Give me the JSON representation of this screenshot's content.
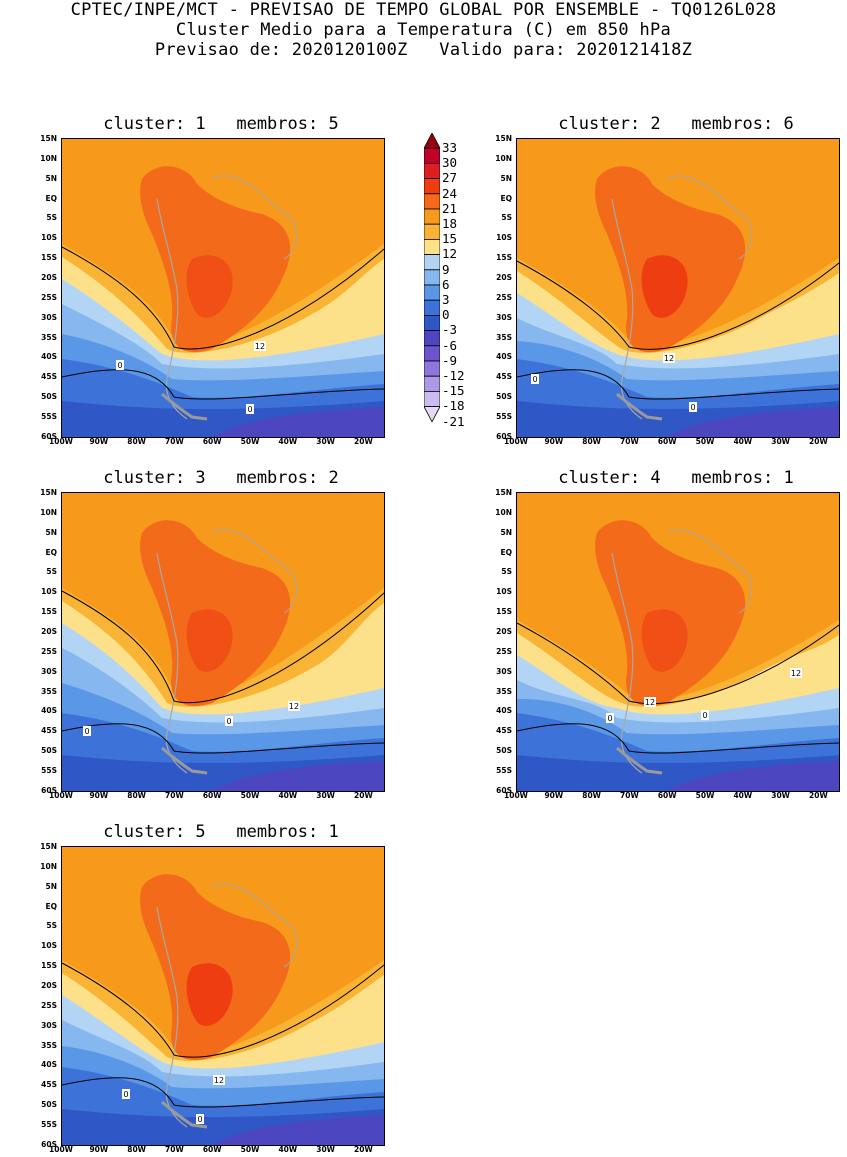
{
  "header": {
    "line1": "CPTEC/INPE/MCT - PREVISAO DE TEMPO GLOBAL POR ENSEMBLE - TQ0126L028",
    "line2": "Cluster Medio para a Temperatura (C) em 850 hPa",
    "line3": "Previsao de: 2020120100Z   Valido para: 2020121418Z"
  },
  "lat_labels": [
    "15N",
    "10N",
    "5N",
    "EQ",
    "5S",
    "10S",
    "15S",
    "20S",
    "25S",
    "30S",
    "35S",
    "40S",
    "45S",
    "50S",
    "55S",
    "60S"
  ],
  "lon_labels": [
    "100W",
    "90W",
    "80W",
    "70W",
    "60W",
    "50W",
    "40W",
    "30W",
    "20W"
  ],
  "colorbar": {
    "labels": [
      "33",
      "30",
      "27",
      "24",
      "21",
      "18",
      "15",
      "12",
      "9",
      "6",
      "3",
      "0",
      "-3",
      "-6",
      "-9",
      "-12",
      "-15",
      "-18",
      "-21"
    ],
    "colors": [
      "#9c0010",
      "#c2002a",
      "#dd1f1f",
      "#ef3d12",
      "#f36b1a",
      "#f79a1c",
      "#f9b435",
      "#fde08a",
      "#b3d5f5",
      "#86b8ef",
      "#5a97e6",
      "#3d73d9",
      "#2f58c6",
      "#4c47c0",
      "#6a55cc",
      "#8d77dc",
      "#ac99e6",
      "#cbbcf0",
      "#e4dbf7"
    ]
  },
  "panels": [
    {
      "title": "cluster: 1   membros: 5",
      "contour_labels": [
        "12",
        "0",
        "0"
      ]
    },
    {
      "title": "cluster: 2   membros: 6",
      "contour_labels": [
        "12",
        "0",
        "0"
      ]
    },
    {
      "title": "cluster: 3   membros: 2",
      "contour_labels": [
        "12",
        "0",
        "0"
      ]
    },
    {
      "title": "cluster: 4   membros: 1",
      "contour_labels": [
        "12",
        "12",
        "0",
        "0"
      ]
    },
    {
      "title": "cluster: 5   membros: 1",
      "contour_labels": [
        "12",
        "0",
        "0"
      ]
    }
  ]
}
